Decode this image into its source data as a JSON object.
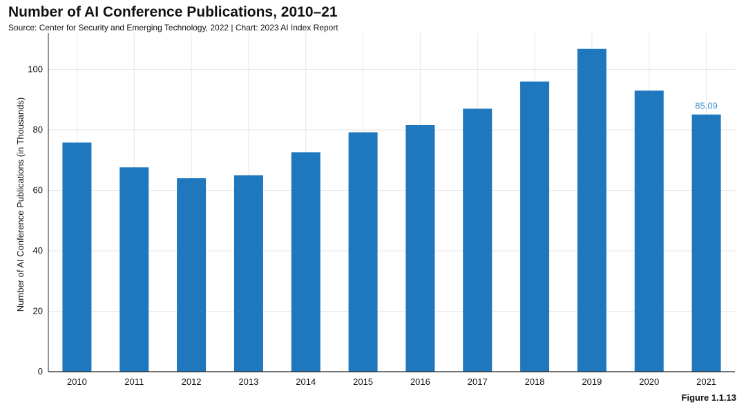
{
  "title": "Number of AI Conference Publications, 2010–21",
  "subtitle": "Source: Center for Security and Emerging Technology, 2022 | Chart: 2023 AI Index Report",
  "figure_label": "Figure 1.1.13",
  "colors": {
    "bar": "#1f77be",
    "label": "#3a8fd0",
    "grid": "#e6e6e6",
    "axis": "#222222"
  },
  "chart_data": {
    "type": "bar",
    "title": "Number of AI Conference Publications, 2010–21",
    "xlabel": "",
    "ylabel": "Number of AI Conference Publications (in Thousands)",
    "categories": [
      "2010",
      "2011",
      "2012",
      "2013",
      "2014",
      "2015",
      "2016",
      "2017",
      "2018",
      "2019",
      "2020",
      "2021"
    ],
    "values": [
      75.8,
      67.6,
      64.0,
      65.0,
      72.6,
      79.2,
      81.6,
      87.0,
      96.0,
      106.8,
      93.0,
      85.09
    ],
    "ylim": [
      0,
      112
    ],
    "yticks": [
      0,
      20,
      40,
      60,
      80,
      100
    ],
    "grid": true,
    "data_labels": [
      {
        "category": "2021",
        "text": "85.09"
      }
    ]
  }
}
